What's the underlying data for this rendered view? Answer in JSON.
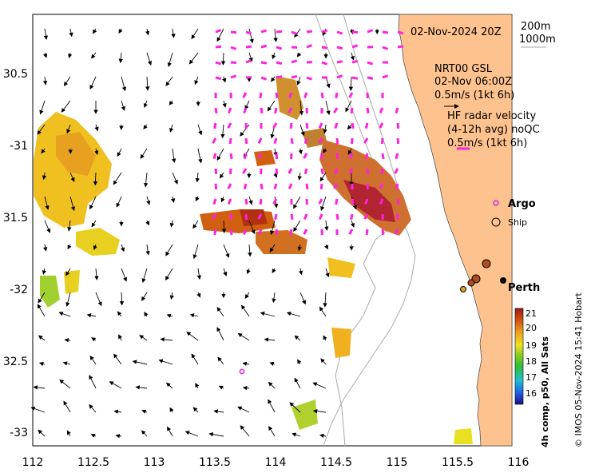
{
  "map": {
    "date_label": "02-Nov-2024 20Z",
    "isobaths": [
      "200m",
      "1000m"
    ],
    "lon_ticks": [
      "112",
      "112.5",
      "113",
      "113.5",
      "114",
      "114.5",
      "115",
      "115.5",
      "116"
    ],
    "lat_ticks": [
      "30.5",
      "-31",
      "31.5",
      "-32",
      "32.5",
      "-33"
    ],
    "model_legend": {
      "name": "NRT00 GSL",
      "time": "02-Nov 06:00Z",
      "scale": "0.5m/s (1kt 6h)"
    },
    "radar_legend": {
      "title": "HF radar velocity",
      "subtitle": "(4-12h avg) noQC",
      "scale": "0.5m/s (1kt 6h)"
    },
    "markers": {
      "argo_label": "Argo",
      "ship_label": "Ship",
      "city_label": "Perth"
    },
    "colorbar": {
      "ticks": [
        "21",
        "20",
        "19",
        "18",
        "17",
        "16"
      ],
      "caption": "4h comp, p50, All Sats",
      "min": 15.5,
      "max": 21.3
    },
    "credit": "© IMOS 05-Nov-2024 15:41 Hobart",
    "colors": {
      "land": "#fdc28e",
      "radar_vectors": "#ff22dd",
      "model_vectors": "#000000",
      "isobath": "#aaaaaa",
      "argo": "#dd22dd"
    }
  }
}
